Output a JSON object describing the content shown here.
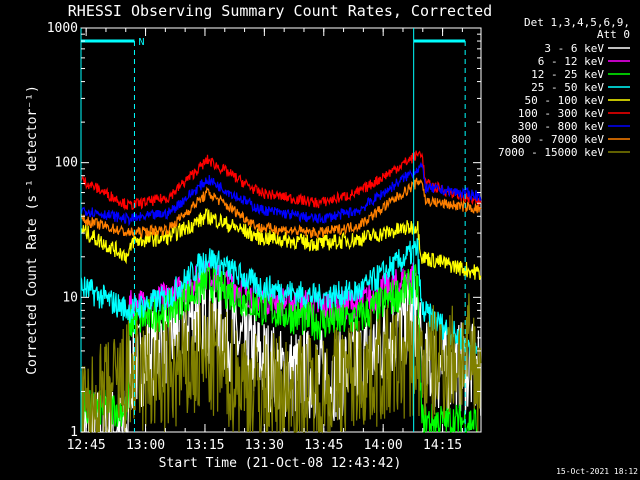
{
  "chart_data": {
    "type": "line",
    "title": "RHESSI Observing Summary Count Rates, Corrected",
    "xlabel": "Start Time (21-Oct-08 12:43:42)",
    "ylabel": "Corrected Count Rate (s⁻¹ detector⁻¹)",
    "yscale": "log",
    "ylim": [
      1,
      1000
    ],
    "y_ticks": [
      {
        "v": 1,
        "label": "1"
      },
      {
        "v": 10,
        "label": "10"
      },
      {
        "v": 100,
        "label": "100"
      },
      {
        "v": 1000,
        "label": "1000"
      }
    ],
    "x_range_min": [
      0,
      46
    ],
    "x_ticks": [
      {
        "m": 1.3,
        "label": "12:45"
      },
      {
        "m": 16.3,
        "label": "13:00"
      },
      {
        "m": 31.3,
        "label": "13:15"
      },
      {
        "m": 46.3,
        "label": "13:30"
      },
      {
        "m": 61.3,
        "label": "13:45"
      },
      {
        "m": 76.3,
        "label": "14:00"
      },
      {
        "m": 91.3,
        "label": "14:15"
      }
    ],
    "x_max_min": 101,
    "legend_header": [
      "Det 1,3,4,5,6,9,",
      "Att 0"
    ],
    "series": [
      {
        "name": "3 - 6 keV",
        "color": "#ffffff",
        "values": [
          [
            0,
            1
          ],
          [
            12,
            1
          ],
          [
            12.1,
            2.8
          ],
          [
            30,
            8
          ],
          [
            50,
            2.7
          ],
          [
            65,
            2.7
          ],
          [
            70,
            3.2
          ],
          [
            85,
            8
          ],
          [
            86,
            3
          ],
          [
            98,
            3
          ],
          [
            101,
            2.5
          ]
        ]
      },
      {
        "name": "6 - 12 keV",
        "color": "#ff00ff",
        "values": [
          [
            12,
            8.5
          ],
          [
            22,
            10
          ],
          [
            32,
            15
          ],
          [
            45,
            10
          ],
          [
            60,
            8.5
          ],
          [
            70,
            9
          ],
          [
            85,
            15
          ]
        ]
      },
      {
        "name": "12 - 25 keV",
        "color": "#00ff00",
        "values": [
          [
            0,
            1.5
          ],
          [
            12,
            1.5
          ],
          [
            12.1,
            6.5
          ],
          [
            22,
            8
          ],
          [
            32,
            13
          ],
          [
            45,
            8.5
          ],
          [
            60,
            6.5
          ],
          [
            70,
            7
          ],
          [
            85,
            13
          ],
          [
            86,
            1.2
          ],
          [
            100,
            1.2
          ]
        ]
      },
      {
        "name": "25 - 50 keV",
        "color": "#00ffff",
        "values": [
          [
            0,
            12
          ],
          [
            12,
            8
          ],
          [
            22,
            10
          ],
          [
            32,
            20
          ],
          [
            45,
            12
          ],
          [
            60,
            10
          ],
          [
            70,
            11
          ],
          [
            85,
            23
          ],
          [
            86,
            8
          ],
          [
            100,
            4
          ]
        ]
      },
      {
        "name": "50 - 100 keV",
        "color": "#ffff00",
        "values": [
          [
            0,
            32
          ],
          [
            4,
            27
          ],
          [
            12,
            20
          ],
          [
            13,
            26
          ],
          [
            22,
            28
          ],
          [
            32,
            40
          ],
          [
            45,
            28
          ],
          [
            60,
            25
          ],
          [
            70,
            27
          ],
          [
            85,
            34
          ],
          [
            86,
            20
          ],
          [
            101,
            15
          ]
        ]
      },
      {
        "name": "100 - 300 keV",
        "color": "#ff0000",
        "values": [
          [
            0,
            75
          ],
          [
            12,
            48
          ],
          [
            22,
            55
          ],
          [
            32,
            105
          ],
          [
            45,
            60
          ],
          [
            60,
            50
          ],
          [
            70,
            60
          ],
          [
            86,
            120
          ],
          [
            87,
            70
          ],
          [
            101,
            50
          ]
        ]
      },
      {
        "name": "300 - 800 keV",
        "color": "#0000ff",
        "values": [
          [
            0,
            45
          ],
          [
            12,
            38
          ],
          [
            22,
            42
          ],
          [
            32,
            75
          ],
          [
            45,
            45
          ],
          [
            60,
            38
          ],
          [
            70,
            44
          ],
          [
            86,
            95
          ],
          [
            87,
            65
          ],
          [
            101,
            57
          ]
        ]
      },
      {
        "name": "800 - 7000 keV",
        "color": "#ff8000",
        "values": [
          [
            0,
            38
          ],
          [
            12,
            30
          ],
          [
            22,
            32
          ],
          [
            32,
            60
          ],
          [
            45,
            33
          ],
          [
            60,
            30
          ],
          [
            70,
            34
          ],
          [
            86,
            75
          ],
          [
            87,
            52
          ],
          [
            101,
            45
          ]
        ]
      },
      {
        "name": "7000 - 15000 keV",
        "color": "#808000",
        "values": [
          [
            0,
            1.2
          ],
          [
            12,
            2.5
          ],
          [
            22,
            2.5
          ],
          [
            32,
            3.5
          ],
          [
            45,
            2
          ],
          [
            60,
            2
          ],
          [
            70,
            2.8
          ],
          [
            85,
            3.5
          ],
          [
            86,
            3
          ],
          [
            98,
            3.8
          ],
          [
            101,
            2.2
          ]
        ]
      }
    ],
    "grid": false,
    "legend_position": "top-right",
    "attenuator_bars": [
      {
        "from": 0,
        "to": 13.5
      },
      {
        "from": 84,
        "to": 97
      }
    ],
    "attenuator_marker": "N"
  },
  "footer": {
    "date": "15-Oct-2021 18:12"
  },
  "colors": {
    "background": "#000000",
    "axes": "#ffffff",
    "annotation": "#00ffff"
  }
}
